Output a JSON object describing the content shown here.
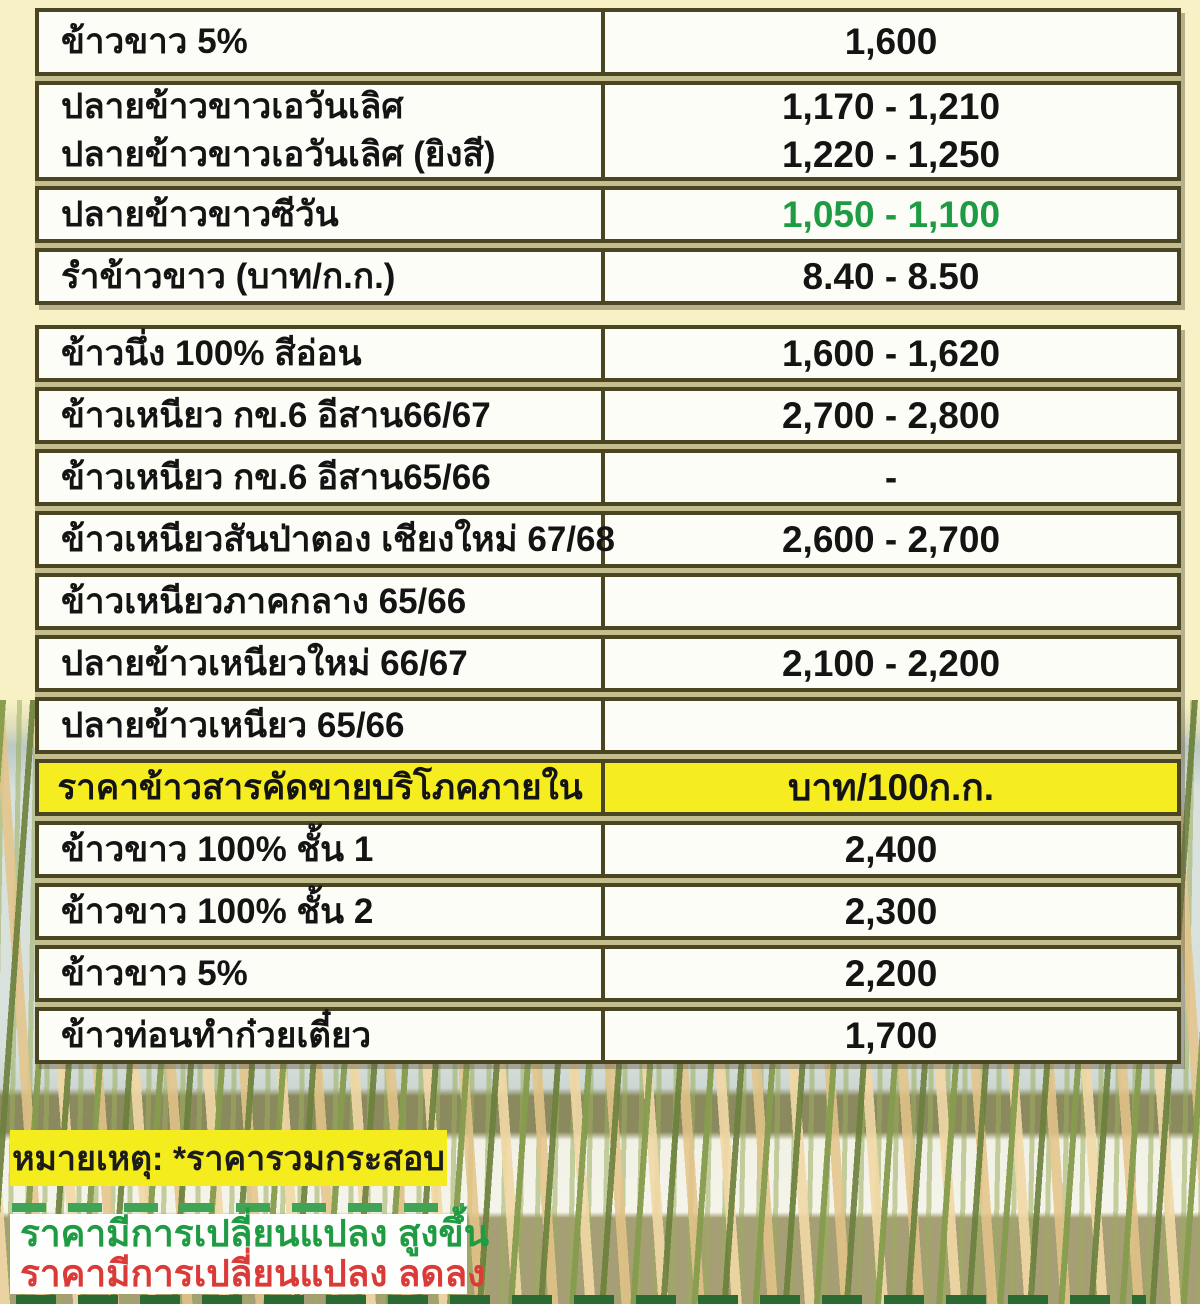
{
  "palette": {
    "page_bg": "#f8f1c5",
    "cell_bg": "#fdfdf8",
    "border": "#4a4523",
    "header_bg": "#f5ed1f",
    "green": "#1f9b43",
    "red": "#da3a38",
    "note_bg": "#f4ec1c"
  },
  "table": {
    "rows": [
      {
        "label": "ข้าวขาว 5%",
        "value": "1,600"
      },
      {
        "label1": "ปลายข้าวขาวเอวันเลิศ",
        "label2": "ปลายข้าวขาวเอวันเลิศ (ยิงสี)",
        "value1": "1,170 - 1,210",
        "value2": "1,220 - 1,250"
      },
      {
        "label": "ปลายข้าวขาวซีวัน",
        "value": "1,050 - 1,100",
        "value_color": "green"
      },
      {
        "label": "รำข้าวขาว (บาท/ก.ก.)",
        "value": "8.40 - 8.50"
      },
      {
        "label": "ข้าวนึ่ง 100% สีอ่อน",
        "value": "1,600 - 1,620"
      },
      {
        "label": "ข้าวเหนียว กข.6 อีสาน66/67",
        "value": "2,700 - 2,800"
      },
      {
        "label": "ข้าวเหนียว กข.6 อีสาน65/66",
        "value": "-"
      },
      {
        "label": "ข้าวเหนียวสันป่าตอง เชียงใหม่ 67/68",
        "value": "2,600 - 2,700"
      },
      {
        "label": "ข้าวเหนียวภาคกลาง 65/66",
        "value": ""
      },
      {
        "label": "ปลายข้าวเหนียวใหม่ 66/67",
        "value": "2,100 - 2,200"
      },
      {
        "label": "ปลายข้าวเหนียว 65/66",
        "value": ""
      }
    ],
    "domestic_header": {
      "label": "ราคาข้าวสารคัดขายบริโภคภายใน",
      "unit": "บาท/100ก.ก."
    },
    "domestic_rows": [
      {
        "label": "ข้าวขาว 100% ชั้น 1",
        "value": "2,400"
      },
      {
        "label": "ข้าวขาว 100% ชั้น 2",
        "value": "2,300"
      },
      {
        "label": "ข้าวขาว 5%",
        "value": "2,200"
      },
      {
        "label": "ข้าวท่อนทำก๋วยเตี๋ยว",
        "value": "1,700"
      }
    ]
  },
  "notes": {
    "remark": "หมายเหตุ: *ราคารวมกระสอบ",
    "legend_up": "ราคามีการเปลี่ยนแปลง สูงขึ้น",
    "legend_down": "ราคามีการเปลี่ยนแปลง ลดลง"
  }
}
